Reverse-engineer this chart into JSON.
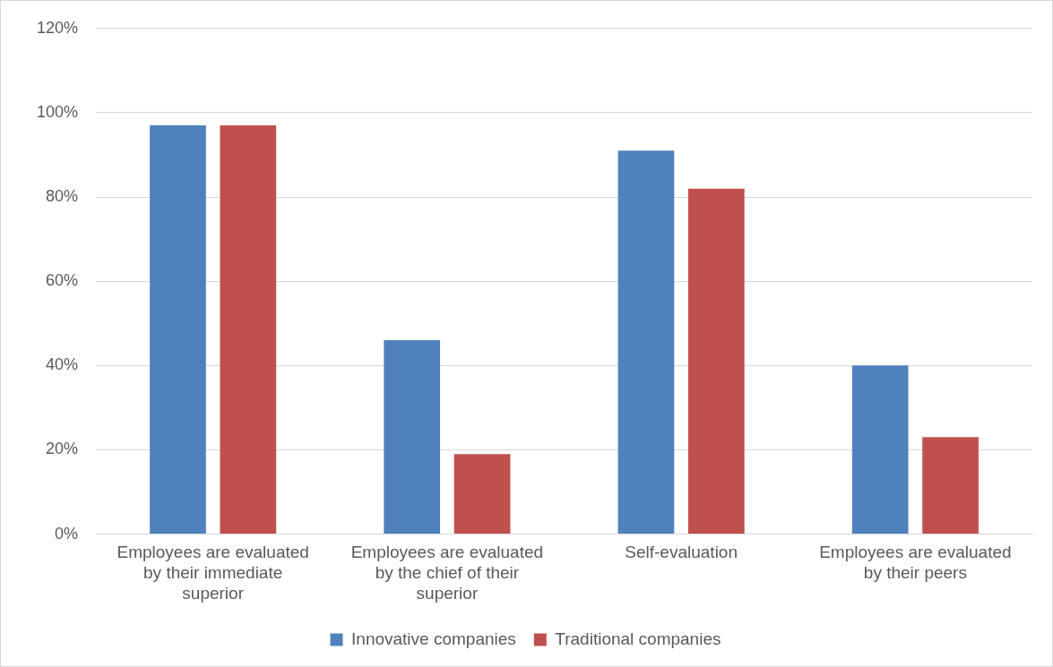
{
  "chart_data": {
    "type": "bar",
    "categories": [
      "Employees are evaluated by their immediate superior",
      "Employees are evaluated by the chief of their superior",
      "Self-evaluation",
      "Employees are evaluated by their peers"
    ],
    "series": [
      {
        "name": "Innovative companies",
        "color": "#4f81bd",
        "values": [
          97,
          46,
          91,
          40
        ]
      },
      {
        "name": "Traditional companies",
        "color": "#c0504d",
        "values": [
          97,
          19,
          82,
          23
        ]
      }
    ],
    "ylim": [
      0,
      120
    ],
    "yticks": [
      {
        "value": 0,
        "label": "0%"
      },
      {
        "value": 20,
        "label": "20%"
      },
      {
        "value": 40,
        "label": "40%"
      },
      {
        "value": 60,
        "label": "60%"
      },
      {
        "value": 80,
        "label": "80%"
      },
      {
        "value": 100,
        "label": "100%"
      },
      {
        "value": 120,
        "label": "120%"
      }
    ],
    "grid": "y",
    "legend": "bottom"
  }
}
